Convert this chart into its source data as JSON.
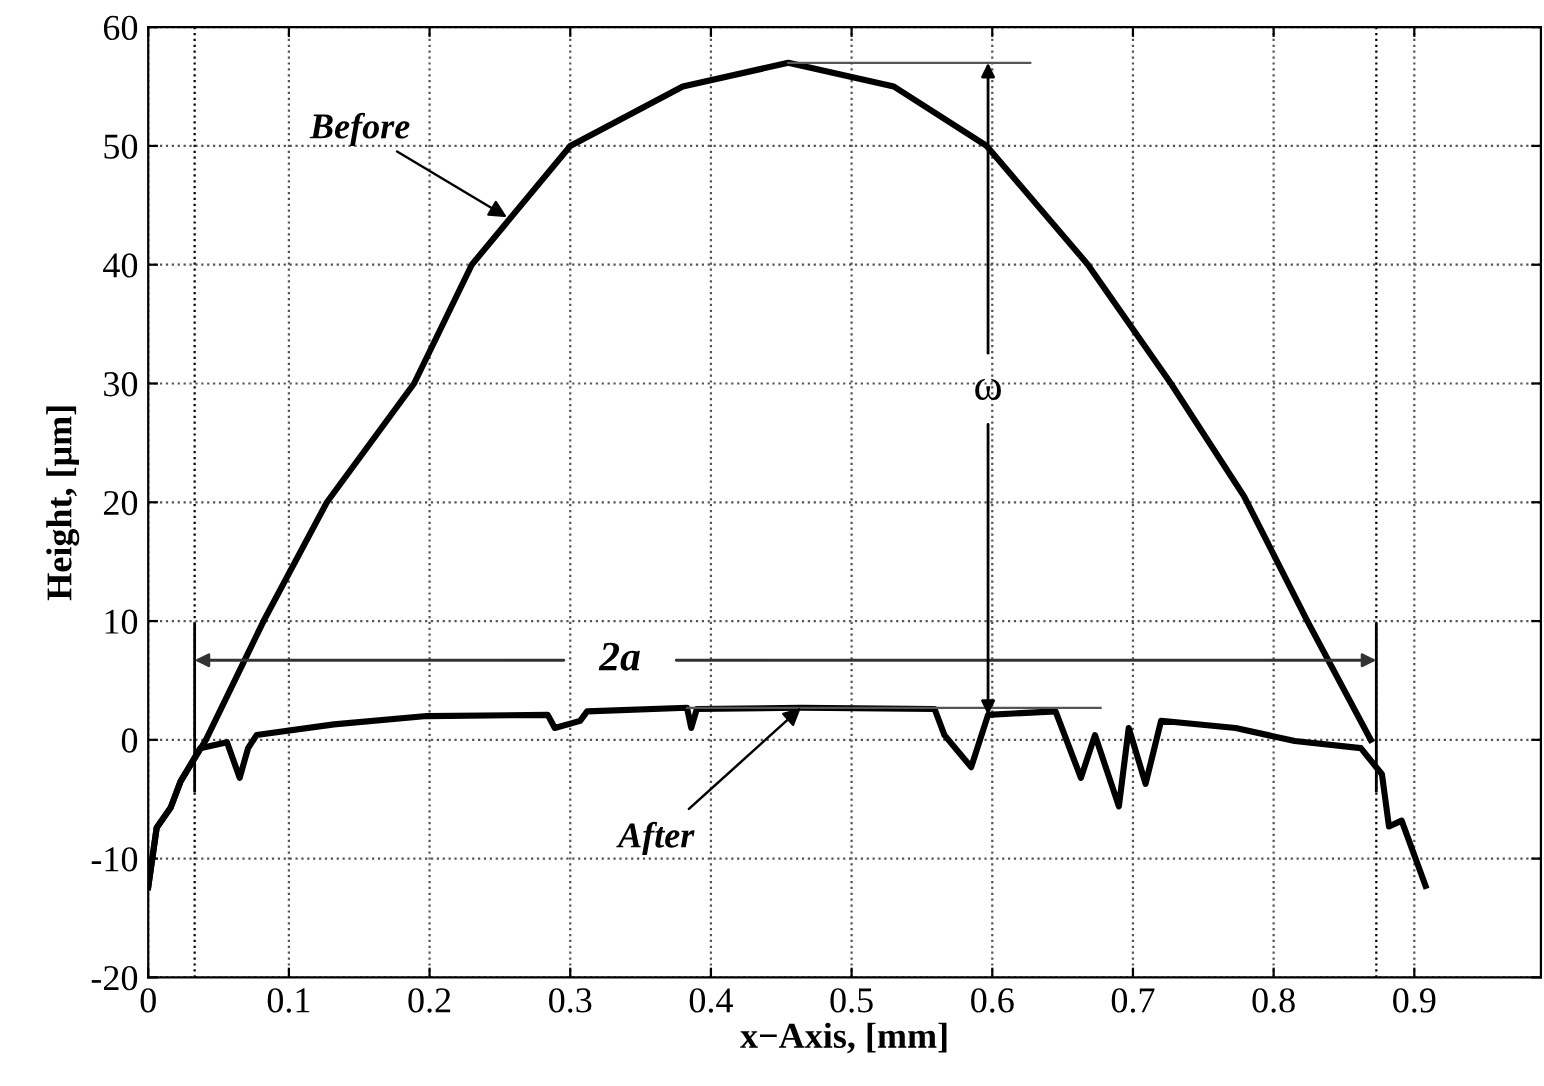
{
  "chart_data": {
    "type": "line",
    "xlabel": "x−Axis, [mm]",
    "ylabel": "Height, [μm]",
    "series": [
      {
        "color": "#000000",
        "x": [
          0.0,
          0.006,
          0.016,
          0.023,
          0.041,
          0.082,
          0.127,
          0.189,
          0.23,
          0.3,
          0.38,
          0.455,
          0.53,
          0.596,
          0.668,
          0.727,
          0.779,
          0.824,
          0.869
        ],
        "values": [
          -12.4,
          -7.4,
          -5.7,
          -3.5,
          0,
          10,
          20,
          30,
          40,
          50,
          55,
          57,
          55,
          50,
          40,
          30,
          20.5,
          10,
          0
        ]
      },
      {
        "color": "#000000",
        "x": [
          0.0,
          0.006,
          0.016,
          0.023,
          0.037,
          0.056,
          0.065,
          0.071,
          0.077,
          0.132,
          0.198,
          0.284,
          0.289,
          0.307,
          0.312,
          0.383,
          0.386,
          0.39,
          0.464,
          0.559,
          0.566,
          0.585,
          0.597,
          0.645,
          0.663,
          0.673,
          0.69,
          0.697,
          0.709,
          0.72,
          0.773,
          0.815,
          0.862,
          0.877,
          0.882,
          0.891,
          0.908
        ],
        "values": [
          -12.4,
          -7.4,
          -5.7,
          -3.5,
          -0.7,
          -0.2,
          -3.2,
          -0.7,
          0.4,
          1.3,
          2.0,
          2.1,
          1.0,
          1.6,
          2.4,
          2.7,
          1.0,
          2.6,
          2.7,
          2.6,
          0.4,
          -2.3,
          2.1,
          2.4,
          -3.2,
          0.4,
          -5.6,
          1.0,
          -3.7,
          1.6,
          1.0,
          -0.1,
          -0.7,
          -2.9,
          -7.3,
          -6.8,
          -12.3
        ]
      }
    ],
    "annotations": [
      {
        "text": "Before",
        "x": 0.255,
        "y": 44
      },
      {
        "text": "After",
        "x": 0.464,
        "y": 2.7
      },
      {
        "text": "2a",
        "x": 0.873,
        "y": 6.7
      },
      {
        "text": "ω",
        "x": 0.597,
        "y": 2.1
      }
    ],
    "ref_lines": [
      {
        "axis": "x",
        "value": 0.033,
        "line_style": "dotted"
      },
      {
        "axis": "x",
        "value": 0.873,
        "line_style": "dotted"
      }
    ],
    "xlim": [
      0,
      0.99
    ],
    "ylim": [
      -20,
      60
    ],
    "xticks": [
      0,
      0.1,
      0.2,
      0.3,
      0.4,
      0.5,
      0.6,
      0.7,
      0.8,
      0.9
    ],
    "yticks": [
      -20,
      -10,
      0,
      10,
      20,
      30,
      40,
      50,
      60
    ],
    "grid": true,
    "line_style": "solid",
    "marker": "none"
  }
}
